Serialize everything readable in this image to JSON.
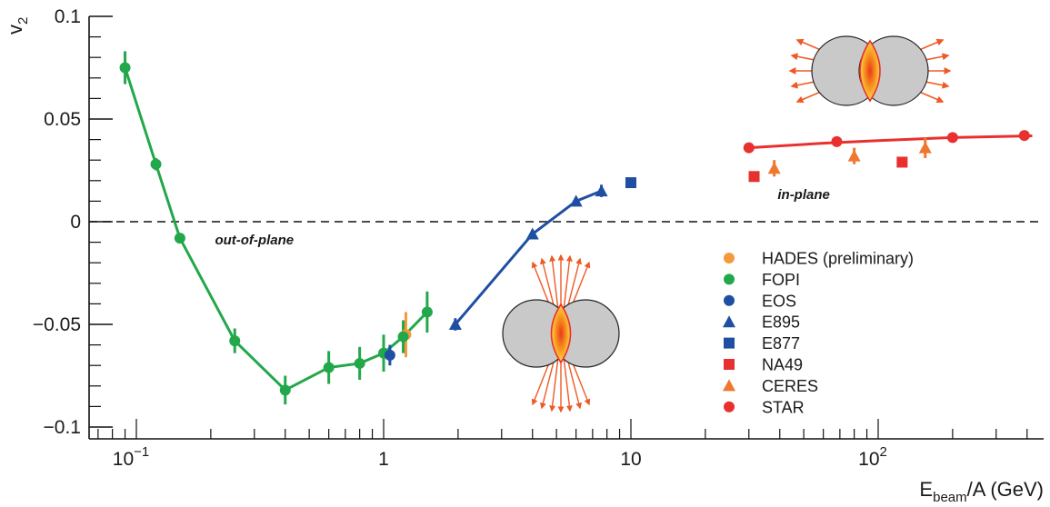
{
  "chart_data": {
    "type": "scatter",
    "xlabel": "E",
    "xlabel_sub": "beam",
    "xlabel_rest": "/A (GeV)",
    "ylabel": "v",
    "ylabel_sub": "2",
    "xscale": "log",
    "xlim": [
      0.065,
      420
    ],
    "ylim": [
      -0.105,
      0.102
    ],
    "yticks": [
      -0.1,
      -0.05,
      0,
      0.05,
      0.1
    ],
    "ytick_labels": [
      "−0.1",
      "−0.05",
      "0",
      "0.05",
      "0.1"
    ],
    "xticks": [
      {
        "value": 0.1,
        "base": "10",
        "exp": "−1"
      },
      {
        "value": 1,
        "base": "1",
        "exp": ""
      },
      {
        "value": 10,
        "base": "10",
        "exp": ""
      },
      {
        "value": 100,
        "base": "10",
        "exp": "2"
      }
    ],
    "zero_line": "dashed",
    "legend_position": "right",
    "annotations": [
      {
        "text": "out-of-plane",
        "x": 0.3,
        "y": -0.011
      },
      {
        "text": "in-plane",
        "x": 50,
        "y": 0.011
      }
    ],
    "series": [
      {
        "name": "HADES (preliminary)",
        "marker": "circle",
        "color": "#f5993a",
        "connected": false,
        "points": [
          {
            "x": 1.23,
            "y": -0.055,
            "err": 0.011
          }
        ]
      },
      {
        "name": "FOPI",
        "marker": "circle",
        "color": "#22a84a",
        "connected": true,
        "points": [
          {
            "x": 0.09,
            "y": 0.075,
            "err": 0.008
          },
          {
            "x": 0.12,
            "y": 0.028,
            "err": 0.003
          },
          {
            "x": 0.15,
            "y": -0.008,
            "err": 0.002
          },
          {
            "x": 0.25,
            "y": -0.058,
            "err": 0.006
          },
          {
            "x": 0.4,
            "y": -0.082,
            "err": 0.007
          },
          {
            "x": 0.6,
            "y": -0.071,
            "err": 0.008
          },
          {
            "x": 0.8,
            "y": -0.069,
            "err": 0.008
          },
          {
            "x": 1.0,
            "y": -0.064,
            "err": 0.009
          },
          {
            "x": 1.2,
            "y": -0.056,
            "err": 0.008
          },
          {
            "x": 1.5,
            "y": -0.044,
            "err": 0.01
          }
        ]
      },
      {
        "name": "EOS",
        "marker": "circle",
        "color": "#1f4fa3",
        "connected": false,
        "points": [
          {
            "x": 1.06,
            "y": -0.065,
            "err": 0.005
          }
        ]
      },
      {
        "name": "E895",
        "marker": "triangle",
        "color": "#1f4fa3",
        "connected": true,
        "points": [
          {
            "x": 1.95,
            "y": -0.05,
            "err": 0.003
          },
          {
            "x": 4.0,
            "y": -0.006,
            "err": 0.002
          },
          {
            "x": 6.0,
            "y": 0.01,
            "err": 0.002
          },
          {
            "x": 7.6,
            "y": 0.015,
            "err": 0.003
          }
        ]
      },
      {
        "name": "E877",
        "marker": "square",
        "color": "#1f4fa3",
        "connected": false,
        "points": [
          {
            "x": 10.0,
            "y": 0.019,
            "err": 0
          }
        ]
      },
      {
        "name": "NA49",
        "marker": "square",
        "color": "#e8312f",
        "connected": false,
        "points": [
          {
            "x": 31.5,
            "y": 0.022,
            "err": 0
          },
          {
            "x": 125,
            "y": 0.029,
            "err": 0
          }
        ]
      },
      {
        "name": "CERES",
        "marker": "triangle",
        "color": "#f0772f",
        "connected": false,
        "points": [
          {
            "x": 38,
            "y": 0.026,
            "err": 0.004
          },
          {
            "x": 80,
            "y": 0.032,
            "err": 0.004
          },
          {
            "x": 155,
            "y": 0.036,
            "err": 0.005
          }
        ]
      },
      {
        "name": "STAR",
        "marker": "circle",
        "color": "#e8312f",
        "connected": false,
        "points": [
          {
            "x": 30,
            "y": 0.036,
            "err": 0
          },
          {
            "x": 68,
            "y": 0.039,
            "err": 0
          },
          {
            "x": 200,
            "y": 0.041,
            "err": 0
          },
          {
            "x": 390,
            "y": 0.042,
            "err": 0
          }
        ]
      }
    ],
    "fits": [
      {
        "color": "#e8312f",
        "x": [
          30,
          60,
          100,
          200,
          420
        ],
        "y": [
          0.036,
          0.0382,
          0.0395,
          0.041,
          0.0418
        ]
      }
    ]
  }
}
